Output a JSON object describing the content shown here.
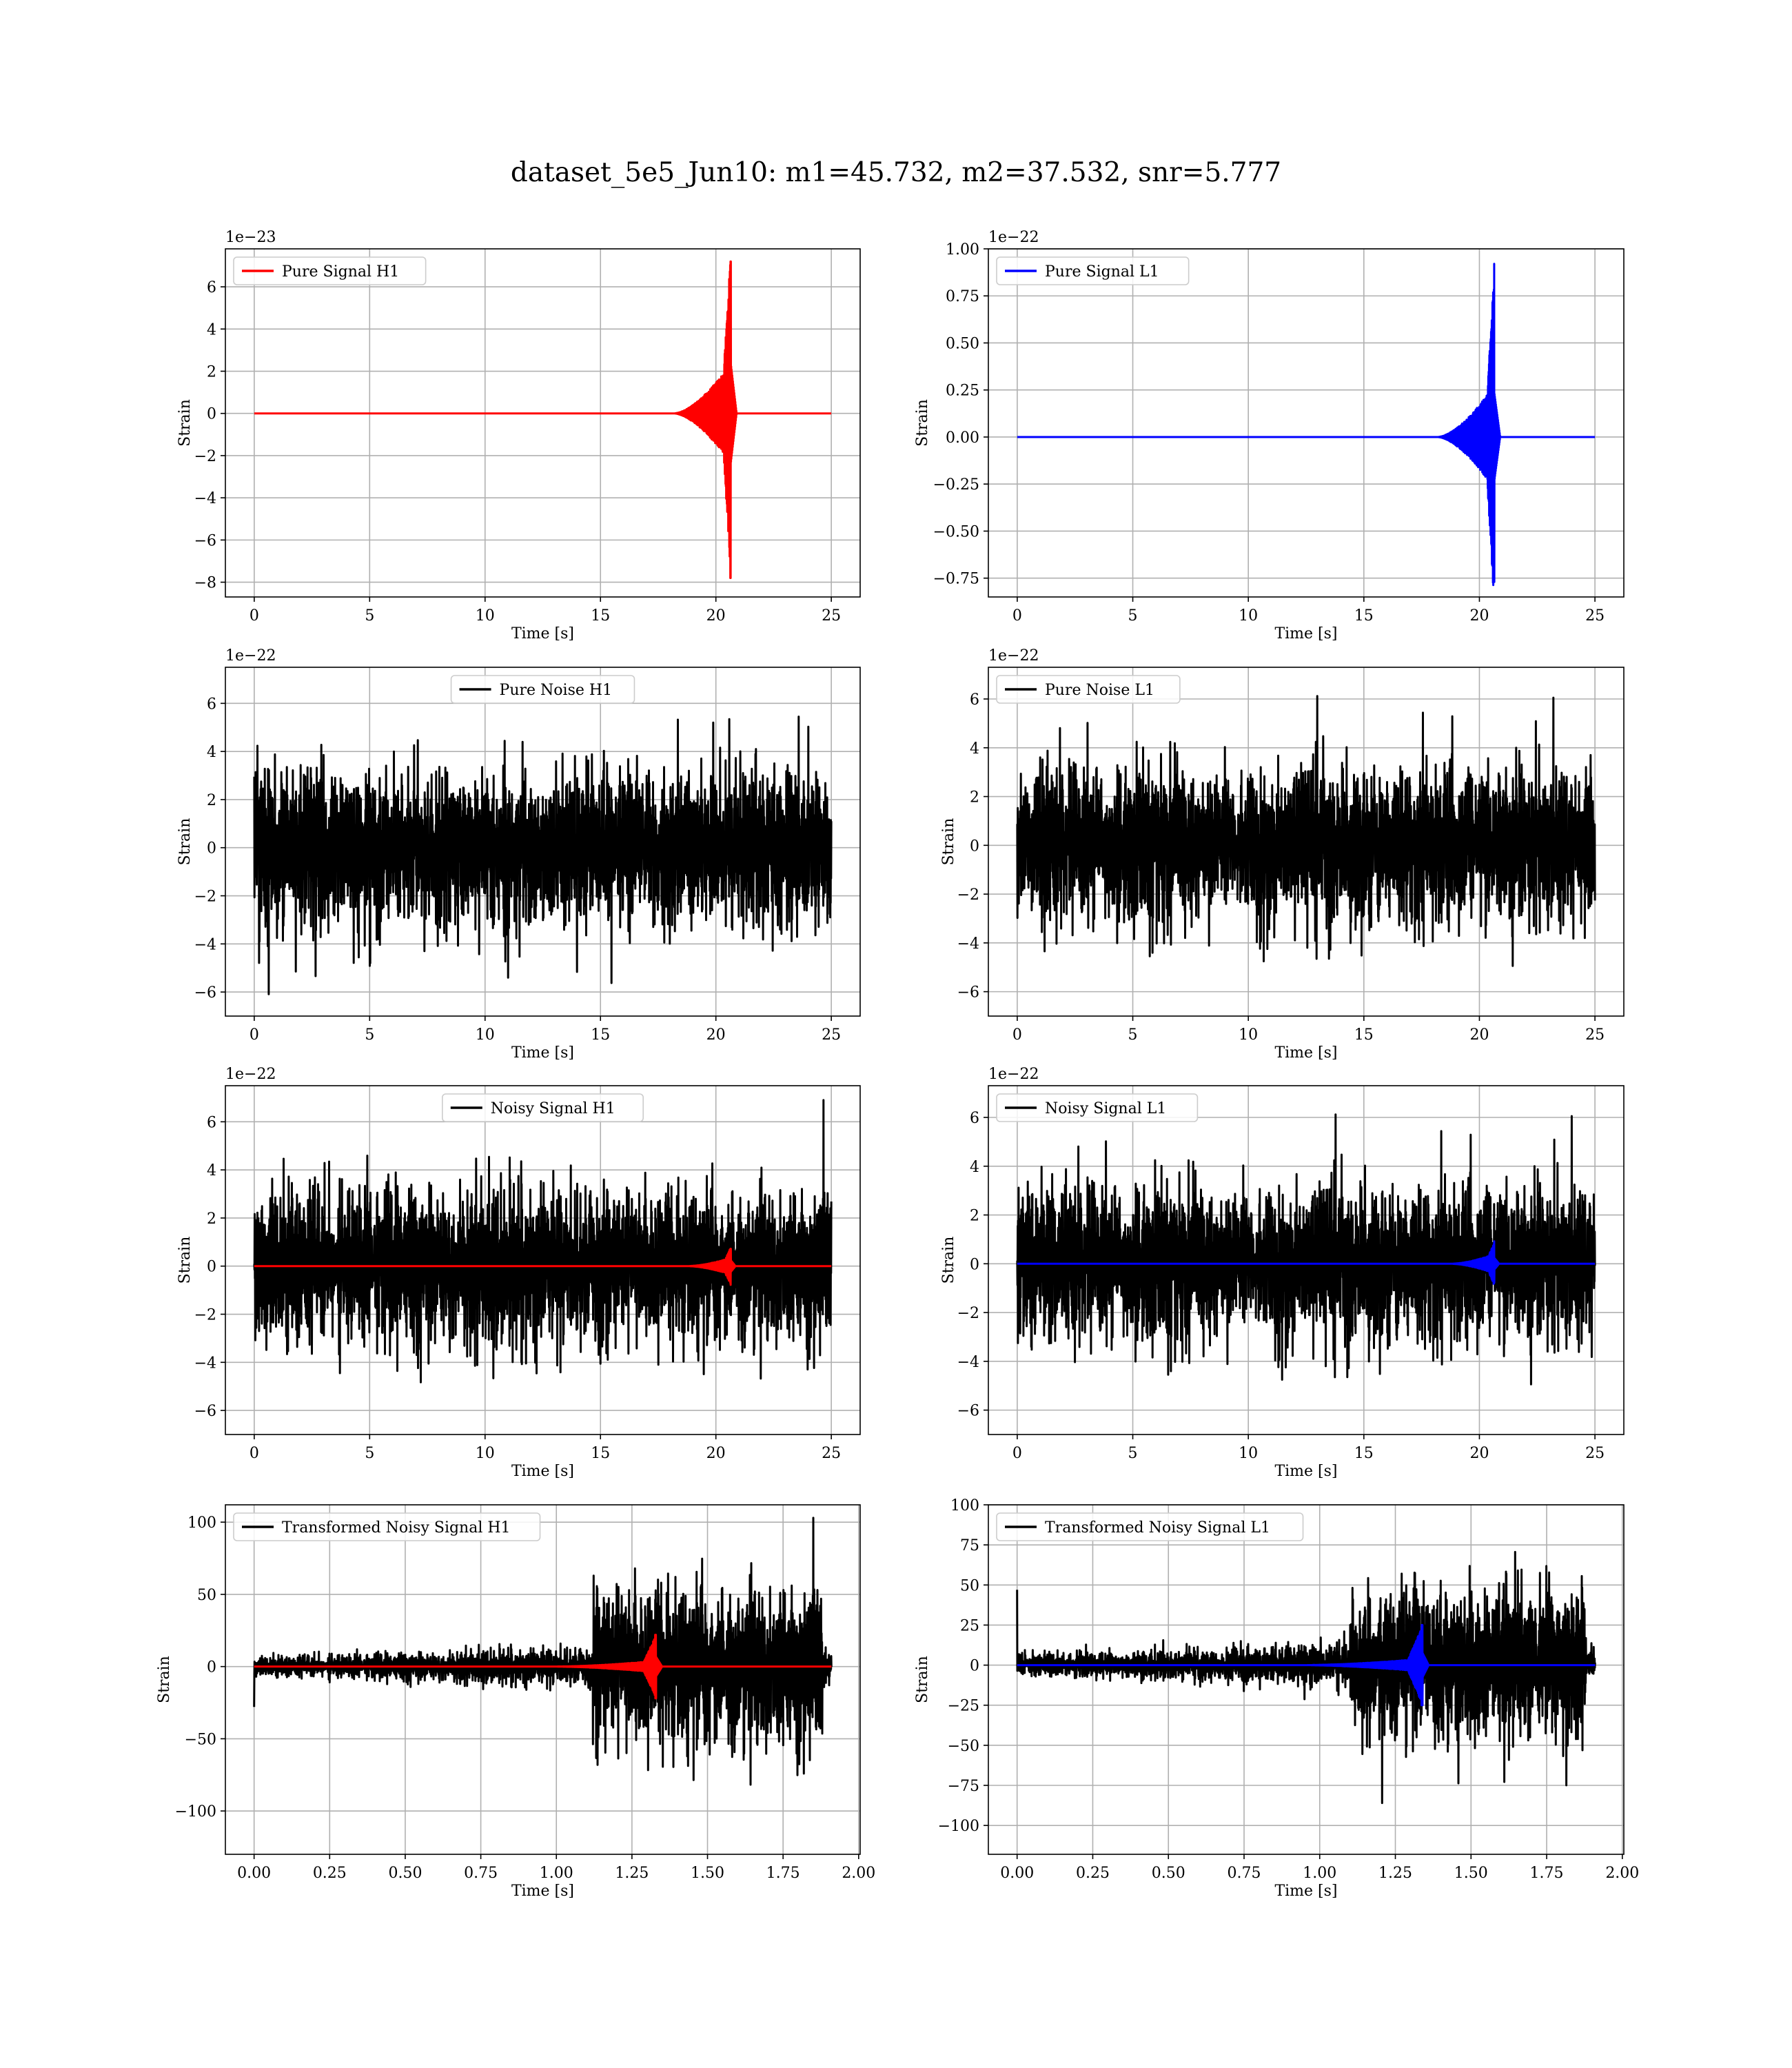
{
  "title": "dataset_5e5_Jun10: m1=45.732, m2=37.532, snr=5.777",
  "colors": {
    "h1": "#ff0000",
    "l1": "#0000ff",
    "noise": "#000000",
    "grid": "#b0b0b0"
  },
  "chart_data": [
    {
      "type": "line",
      "legend": "Pure Signal H1",
      "legend_position": "top-left",
      "xlabel": "Time [s]",
      "ylabel": "Strain",
      "offset_text": "1e−23",
      "xlim": [
        -1.25,
        26.25
      ],
      "ylim": [
        -8.7,
        7.8
      ],
      "xticks": [
        0,
        5,
        10,
        15,
        20,
        25
      ],
      "yticks": [
        -8,
        -6,
        -4,
        -2,
        0,
        2,
        4,
        6
      ],
      "ytick_labels": [
        "−8",
        "−6",
        "−4",
        "−2",
        "0",
        "2",
        "4",
        "6"
      ],
      "grid": true,
      "series": [
        {
          "kind": "chirp",
          "color": "h1",
          "t0": 0,
          "t1": 25,
          "onset": 18.2,
          "merger": 20.65,
          "ring": 0.25,
          "amp_early": 2.4,
          "peak_pos": 7.2,
          "peak_neg": -7.8
        }
      ]
    },
    {
      "type": "line",
      "legend": "Pure Signal L1",
      "legend_position": "top-left",
      "xlabel": "Time [s]",
      "ylabel": "Strain",
      "offset_text": "1e−22",
      "xlim": [
        -1.25,
        26.25
      ],
      "ylim": [
        -0.85,
        1.0
      ],
      "xticks": [
        0,
        5,
        10,
        15,
        20,
        25
      ],
      "yticks": [
        -0.75,
        -0.5,
        -0.25,
        0,
        0.25,
        0.5,
        0.75,
        1.0
      ],
      "ytick_labels": [
        "−0.75",
        "−0.50",
        "−0.25",
        "0.00",
        "0.25",
        "0.50",
        "0.75",
        "1.00"
      ],
      "grid": true,
      "series": [
        {
          "kind": "chirp",
          "color": "l1",
          "t0": 0,
          "t1": 25,
          "onset": 18.2,
          "merger": 20.65,
          "ring": 0.25,
          "amp_early": 0.28,
          "peak_pos": 0.92,
          "peak_neg": -0.77
        }
      ]
    },
    {
      "type": "line",
      "legend": "Pure Noise H1",
      "legend_position": "top-center",
      "xlabel": "Time [s]",
      "ylabel": "Strain",
      "offset_text": "1e−22",
      "xlim": [
        -1.25,
        26.25
      ],
      "ylim": [
        -7.0,
        7.5
      ],
      "xticks": [
        0,
        5,
        10,
        15,
        20,
        25
      ],
      "yticks": [
        -6,
        -4,
        -2,
        0,
        2,
        4,
        6
      ],
      "ytick_labels": [
        "−6",
        "−4",
        "−2",
        "0",
        "2",
        "4",
        "6"
      ],
      "grid": true,
      "series": [
        {
          "kind": "noise",
          "color": "noise",
          "t0": 0,
          "t1": 25,
          "sigma": 1.6,
          "max": 6.9,
          "min": -6.4
        }
      ]
    },
    {
      "type": "line",
      "legend": "Pure Noise L1",
      "legend_position": "top-left",
      "xlabel": "Time [s]",
      "ylabel": "Strain",
      "offset_text": "1e−22",
      "xlim": [
        -1.25,
        26.25
      ],
      "ylim": [
        -7.0,
        7.3
      ],
      "xticks": [
        0,
        5,
        10,
        15,
        20,
        25
      ],
      "yticks": [
        -6,
        -4,
        -2,
        0,
        2,
        4,
        6
      ],
      "ytick_labels": [
        "−6",
        "−4",
        "−2",
        "0",
        "2",
        "4",
        "6"
      ],
      "grid": true,
      "series": [
        {
          "kind": "noise",
          "color": "noise",
          "t0": 0,
          "t1": 25,
          "sigma": 1.6,
          "max": 6.8,
          "min": -6.4
        }
      ]
    },
    {
      "type": "line",
      "legend": "Noisy Signal H1",
      "legend_position": "top-center",
      "xlabel": "Time [s]",
      "ylabel": "Strain",
      "offset_text": "1e−22",
      "xlim": [
        -1.25,
        26.25
      ],
      "ylim": [
        -7.0,
        7.5
      ],
      "xticks": [
        0,
        5,
        10,
        15,
        20,
        25
      ],
      "yticks": [
        -6,
        -4,
        -2,
        0,
        2,
        4,
        6
      ],
      "ytick_labels": [
        "−6",
        "−4",
        "−2",
        "0",
        "2",
        "4",
        "6"
      ],
      "grid": true,
      "series": [
        {
          "kind": "noise",
          "color": "noise",
          "t0": 0,
          "t1": 25,
          "sigma": 1.6,
          "max": 6.9,
          "min": -6.4
        },
        {
          "kind": "chirp",
          "color": "h1",
          "t0": 0,
          "t1": 25,
          "onset": 18.8,
          "merger": 20.65,
          "ring": 0.2,
          "amp_early": 0.35,
          "peak_pos": 0.72,
          "peak_neg": -0.78
        }
      ]
    },
    {
      "type": "line",
      "legend": "Noisy Signal L1",
      "legend_position": "top-left",
      "xlabel": "Time [s]",
      "ylabel": "Strain",
      "offset_text": "1e−22",
      "xlim": [
        -1.25,
        26.25
      ],
      "ylim": [
        -7.0,
        7.3
      ],
      "xticks": [
        0,
        5,
        10,
        15,
        20,
        25
      ],
      "yticks": [
        -6,
        -4,
        -2,
        0,
        2,
        4,
        6
      ],
      "ytick_labels": [
        "−6",
        "−4",
        "−2",
        "0",
        "2",
        "4",
        "6"
      ],
      "grid": true,
      "series": [
        {
          "kind": "noise",
          "color": "noise",
          "t0": 0,
          "t1": 25,
          "sigma": 1.6,
          "max": 6.8,
          "min": -6.4
        },
        {
          "kind": "chirp",
          "color": "l1",
          "t0": 0,
          "t1": 25,
          "onset": 18.8,
          "merger": 20.65,
          "ring": 0.2,
          "amp_early": 0.4,
          "peak_pos": 0.92,
          "peak_neg": -0.77
        }
      ]
    },
    {
      "type": "line",
      "legend": "Transformed Noisy Signal H1",
      "legend_position": "top-left",
      "xlabel": "Time [s]",
      "ylabel": "Strain",
      "offset_text": "",
      "xlim": [
        -0.095,
        2.005
      ],
      "ylim": [
        -130,
        112
      ],
      "xticks": [
        0,
        0.25,
        0.5,
        0.75,
        1.0,
        1.25,
        1.5,
        1.75,
        2.0
      ],
      "xtick_labels": [
        "0.00",
        "0.25",
        "0.50",
        "0.75",
        "1.00",
        "1.25",
        "1.50",
        "1.75",
        "2.00"
      ],
      "yticks": [
        -100,
        -50,
        0,
        50,
        100
      ],
      "ytick_labels": [
        "−100",
        "−50",
        "0",
        "50",
        "100"
      ],
      "grid": true,
      "series": [
        {
          "kind": "tnoise",
          "color": "noise",
          "t0": 0,
          "t1": 1.91,
          "jump": 1.12,
          "sigma_lo": 4,
          "sigma_hi": 28,
          "max": 103,
          "min": -118,
          "edge_start": -28
        },
        {
          "kind": "chirp",
          "color": "h1",
          "t0": 0,
          "t1": 1.91,
          "onset": 1.0,
          "merger": 1.33,
          "ring": 0.02,
          "amp_early": 4,
          "peak_pos": 22,
          "peak_neg": -22
        }
      ]
    },
    {
      "type": "line",
      "legend": "Transformed Noisy Signal L1",
      "legend_position": "top-left",
      "xlabel": "Time [s]",
      "ylabel": "Strain",
      "offset_text": "",
      "xlim": [
        -0.095,
        2.005
      ],
      "ylim": [
        -118,
        100
      ],
      "xticks": [
        0,
        0.25,
        0.5,
        0.75,
        1.0,
        1.25,
        1.5,
        1.75,
        2.0
      ],
      "xtick_labels": [
        "0.00",
        "0.25",
        "0.50",
        "0.75",
        "1.00",
        "1.25",
        "1.50",
        "1.75",
        "2.00"
      ],
      "yticks": [
        -100,
        -75,
        -50,
        -25,
        0,
        25,
        50,
        75,
        100
      ],
      "ytick_labels": [
        "−100",
        "−75",
        "−50",
        "−25",
        "0",
        "25",
        "50",
        "75",
        "100"
      ],
      "grid": true,
      "series": [
        {
          "kind": "tnoise",
          "color": "noise",
          "t0": 0,
          "t1": 1.91,
          "jump": 1.1,
          "sigma_lo": 4,
          "sigma_hi": 24,
          "max": 91,
          "min": -112,
          "edge_start": 47
        },
        {
          "kind": "chirp",
          "color": "l1",
          "t0": 0,
          "t1": 1.91,
          "onset": 0.95,
          "merger": 1.34,
          "ring": 0.02,
          "amp_early": 4,
          "peak_pos": 25,
          "peak_neg": -25
        }
      ]
    }
  ]
}
